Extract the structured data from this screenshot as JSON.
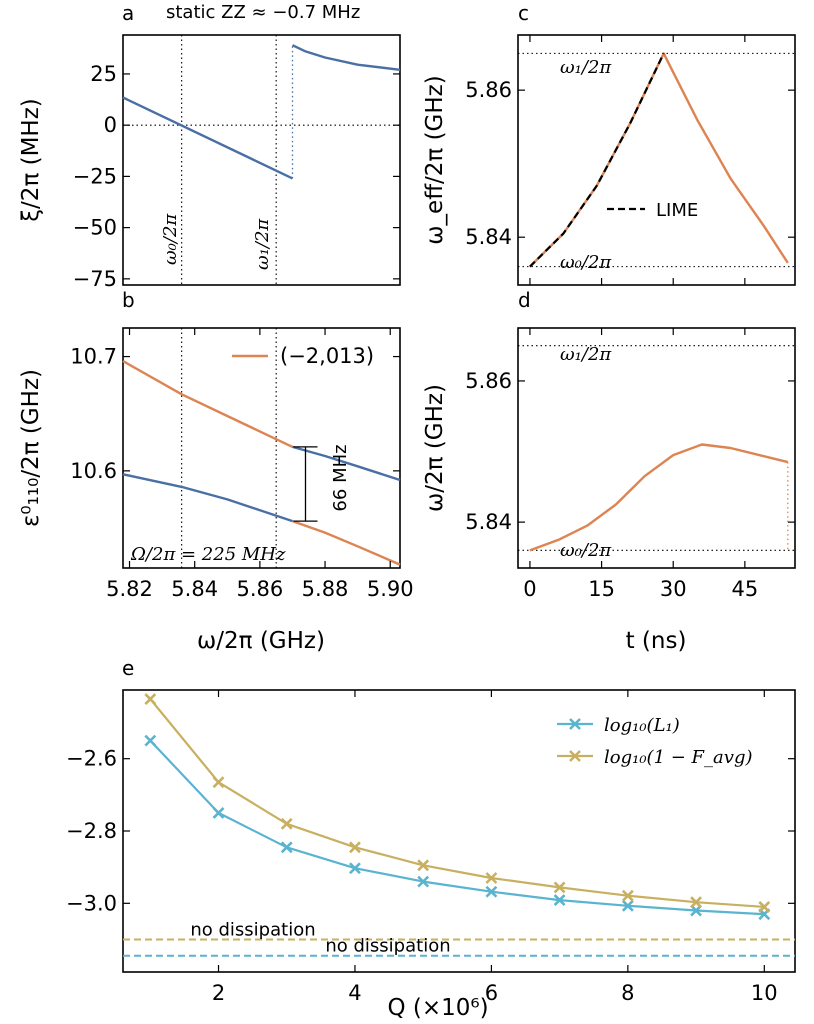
{
  "colors": {
    "blue": "#4a6fa5",
    "orange": "#dd8452",
    "teal": "#5ab4d0",
    "gold": "#c8b060",
    "black": "#000000"
  },
  "chart_data": [
    {
      "panel": "a",
      "type": "line",
      "title": "static ZZ ≈ −0.7 MHz",
      "xlabel": "",
      "ylabel": "ξ/2π (MHz)",
      "xlim": [
        5.818,
        5.903
      ],
      "ylim": [
        -78,
        44
      ],
      "yticks": [
        "25",
        "0",
        "−25",
        "−50",
        "−75"
      ],
      "ytick_values": [
        25,
        0,
        -25,
        -50,
        -75
      ],
      "series": [
        {
          "color": "blue",
          "x": [
            5.818,
            5.87
          ],
          "y": [
            13.5,
            -26
          ],
          "style": "solid"
        },
        {
          "color": "blue",
          "x": [
            5.87,
            5.874,
            5.88,
            5.89,
            5.903
          ],
          "y": [
            39,
            36,
            33,
            29.5,
            27
          ],
          "style": "solid"
        },
        {
          "color": "blue",
          "x": [
            5.87,
            5.87
          ],
          "y": [
            -26,
            39
          ],
          "style": "dotted"
        }
      ],
      "annotations": [
        {
          "text": "ω₀/2π",
          "x": 5.836
        },
        {
          "text": "ω₁/2π",
          "x": 5.865
        }
      ],
      "reference_lines": {
        "vertical": [
          5.836,
          5.865
        ],
        "horizontal": [
          0
        ]
      }
    },
    {
      "panel": "b",
      "type": "line",
      "xlabel": "ω/2π (GHz)",
      "ylabel": "ε⁰₁₁₀/2π (GHz)",
      "xlim": [
        5.818,
        5.903
      ],
      "ylim": [
        10.515,
        10.725
      ],
      "xticks": [
        "5.82",
        "5.84",
        "5.86",
        "5.88",
        "5.90"
      ],
      "xtick_values": [
        5.82,
        5.84,
        5.86,
        5.88,
        5.9
      ],
      "yticks": [
        "10.7",
        "10.6"
      ],
      "ytick_values": [
        10.7,
        10.6
      ],
      "legend": {
        "label": "(−2,013)",
        "color": "orange",
        "position": "top-right"
      },
      "series": [
        {
          "color": "orange",
          "x": [
            5.818,
            5.836,
            5.85,
            5.87
          ],
          "y": [
            10.696,
            10.667,
            10.648,
            10.621
          ]
        },
        {
          "color": "orange",
          "x": [
            5.87,
            5.88,
            5.89,
            5.903
          ],
          "y": [
            10.556,
            10.546,
            10.534,
            10.518
          ]
        },
        {
          "color": "blue",
          "x": [
            5.818,
            5.836,
            5.85,
            5.87
          ],
          "y": [
            10.597,
            10.586,
            10.575,
            10.556
          ]
        },
        {
          "color": "blue",
          "x": [
            5.87,
            5.88,
            5.89,
            5.903
          ],
          "y": [
            10.621,
            10.613,
            10.604,
            10.592
          ]
        }
      ],
      "gap_annotation": {
        "text": "66 MHz",
        "x": 5.874,
        "y_low": 10.556,
        "y_high": 10.621
      },
      "parameter_label": "Ω/2π = 225 MHz",
      "reference_lines": {
        "vertical": [
          5.836,
          5.865
        ]
      }
    },
    {
      "panel": "c",
      "type": "line",
      "xlabel": "",
      "ylabel": "ω_eff/2π (GHz)",
      "xlim": [
        -2.5,
        55.5
      ],
      "ylim": [
        5.8335,
        5.8675
      ],
      "yticks": [
        "5.86",
        "5.84"
      ],
      "ytick_values": [
        5.86,
        5.84
      ],
      "series": [
        {
          "color": "orange",
          "x": [
            0,
            7,
            14,
            21,
            28,
            35,
            42,
            49,
            54
          ],
          "y": [
            5.836,
            5.8405,
            5.847,
            5.8555,
            5.865,
            5.856,
            5.848,
            5.8415,
            5.8365
          ],
          "style": "solid"
        },
        {
          "name": "LIME",
          "color": "black",
          "x": [
            0,
            7,
            14,
            21,
            28
          ],
          "y": [
            5.836,
            5.8405,
            5.847,
            5.8555,
            5.865
          ],
          "style": "dashed"
        }
      ],
      "legend": {
        "label": "LIME",
        "position": "center"
      },
      "annotations": [
        {
          "text": "ω₁/2π",
          "y": 5.865
        },
        {
          "text": "ω₀/2π",
          "y": 5.836
        }
      ],
      "reference_lines": {
        "horizontal": [
          5.865,
          5.836
        ]
      }
    },
    {
      "panel": "d",
      "type": "line",
      "xlabel": "t (ns)",
      "ylabel": "ω/2π (GHz)",
      "xlim": [
        -2.5,
        55.5
      ],
      "ylim": [
        5.8335,
        5.8675
      ],
      "xticks": [
        "0",
        "15",
        "30",
        "45"
      ],
      "xtick_values": [
        0,
        15,
        30,
        45
      ],
      "yticks": [
        "5.86",
        "5.84"
      ],
      "ytick_values": [
        5.86,
        5.84
      ],
      "series": [
        {
          "color": "orange",
          "x": [
            0,
            6,
            12,
            18,
            24,
            30,
            36,
            42,
            48,
            54
          ],
          "y": [
            5.836,
            5.8375,
            5.8395,
            5.8425,
            5.8465,
            5.8495,
            5.851,
            5.8505,
            5.8495,
            5.8485
          ],
          "style": "solid"
        },
        {
          "color": "orange",
          "x": [
            54,
            54
          ],
          "y": [
            5.8485,
            5.836
          ],
          "style": "dotted"
        }
      ],
      "annotations": [
        {
          "text": "ω₁/2π",
          "y": 5.865
        },
        {
          "text": "ω₀/2π",
          "y": 5.836
        }
      ],
      "reference_lines": {
        "horizontal": [
          5.865,
          5.836
        ]
      }
    },
    {
      "panel": "e",
      "type": "line",
      "xlabel": "Q (×10⁶)",
      "ylabel": "",
      "xlim": [
        0.6,
        10.45
      ],
      "ylim": [
        -3.19,
        -2.41
      ],
      "xticks": [
        "2",
        "4",
        "6",
        "8",
        "10"
      ],
      "xtick_values": [
        2,
        4,
        6,
        8,
        10
      ],
      "yticks": [
        "−2.6",
        "−2.8",
        "−3.0"
      ],
      "ytick_values": [
        -2.6,
        -2.8,
        -3.0
      ],
      "legend_position": "top-right",
      "series": [
        {
          "name": "log₁₀(L₁)",
          "color": "teal",
          "marker": "x",
          "x": [
            1,
            2,
            3,
            4,
            5,
            6,
            7,
            8,
            9,
            10
          ],
          "y": [
            -2.55,
            -2.75,
            -2.845,
            -2.903,
            -2.94,
            -2.968,
            -2.991,
            -3.007,
            -3.02,
            -3.03
          ]
        },
        {
          "name": "log₁₀(1 − F_avg)",
          "color": "gold",
          "marker": "x",
          "x": [
            1,
            2,
            3,
            4,
            5,
            6,
            7,
            8,
            9,
            10
          ],
          "y": [
            -2.435,
            -2.665,
            -2.78,
            -2.845,
            -2.895,
            -2.93,
            -2.956,
            -2.979,
            -2.997,
            -3.01
          ]
        }
      ],
      "reference_lines": [
        {
          "label": "no dissipation",
          "color": "gold",
          "y": -3.1,
          "style": "dashed"
        },
        {
          "label": "no dissipation",
          "color": "teal",
          "y": -3.145,
          "style": "dashed"
        }
      ]
    }
  ]
}
